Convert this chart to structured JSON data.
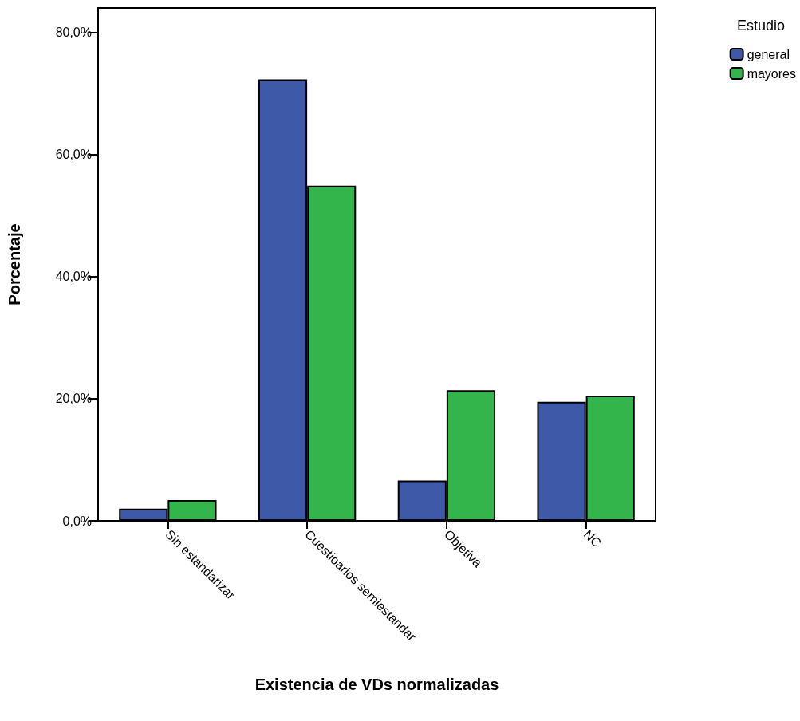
{
  "chart_data": {
    "type": "bar",
    "xlabel": "Existencia de VDs normalizadas",
    "ylabel": "Porcentaje",
    "legend_title": "Estudio",
    "categories": [
      "Sin estandarizar",
      "Cuestioarios semiestandar",
      "Objetiva",
      "NC"
    ],
    "series": [
      {
        "name": "general",
        "color": "#3f59a9",
        "values": [
          2.0,
          72.3,
          6.6,
          19.5
        ]
      },
      {
        "name": "mayores",
        "color": "#33b54b",
        "values": [
          3.4,
          54.9,
          21.4,
          20.5
        ]
      }
    ],
    "ylim": [
      0,
      84
    ],
    "yticks": [
      {
        "value": 0,
        "label": "0,0%"
      },
      {
        "value": 20,
        "label": "20,0%"
      },
      {
        "value": 40,
        "label": "40,0%"
      },
      {
        "value": 60,
        "label": "60,0%"
      },
      {
        "value": 80,
        "label": "80,0%"
      }
    ],
    "grid": false,
    "legend": "top right"
  }
}
